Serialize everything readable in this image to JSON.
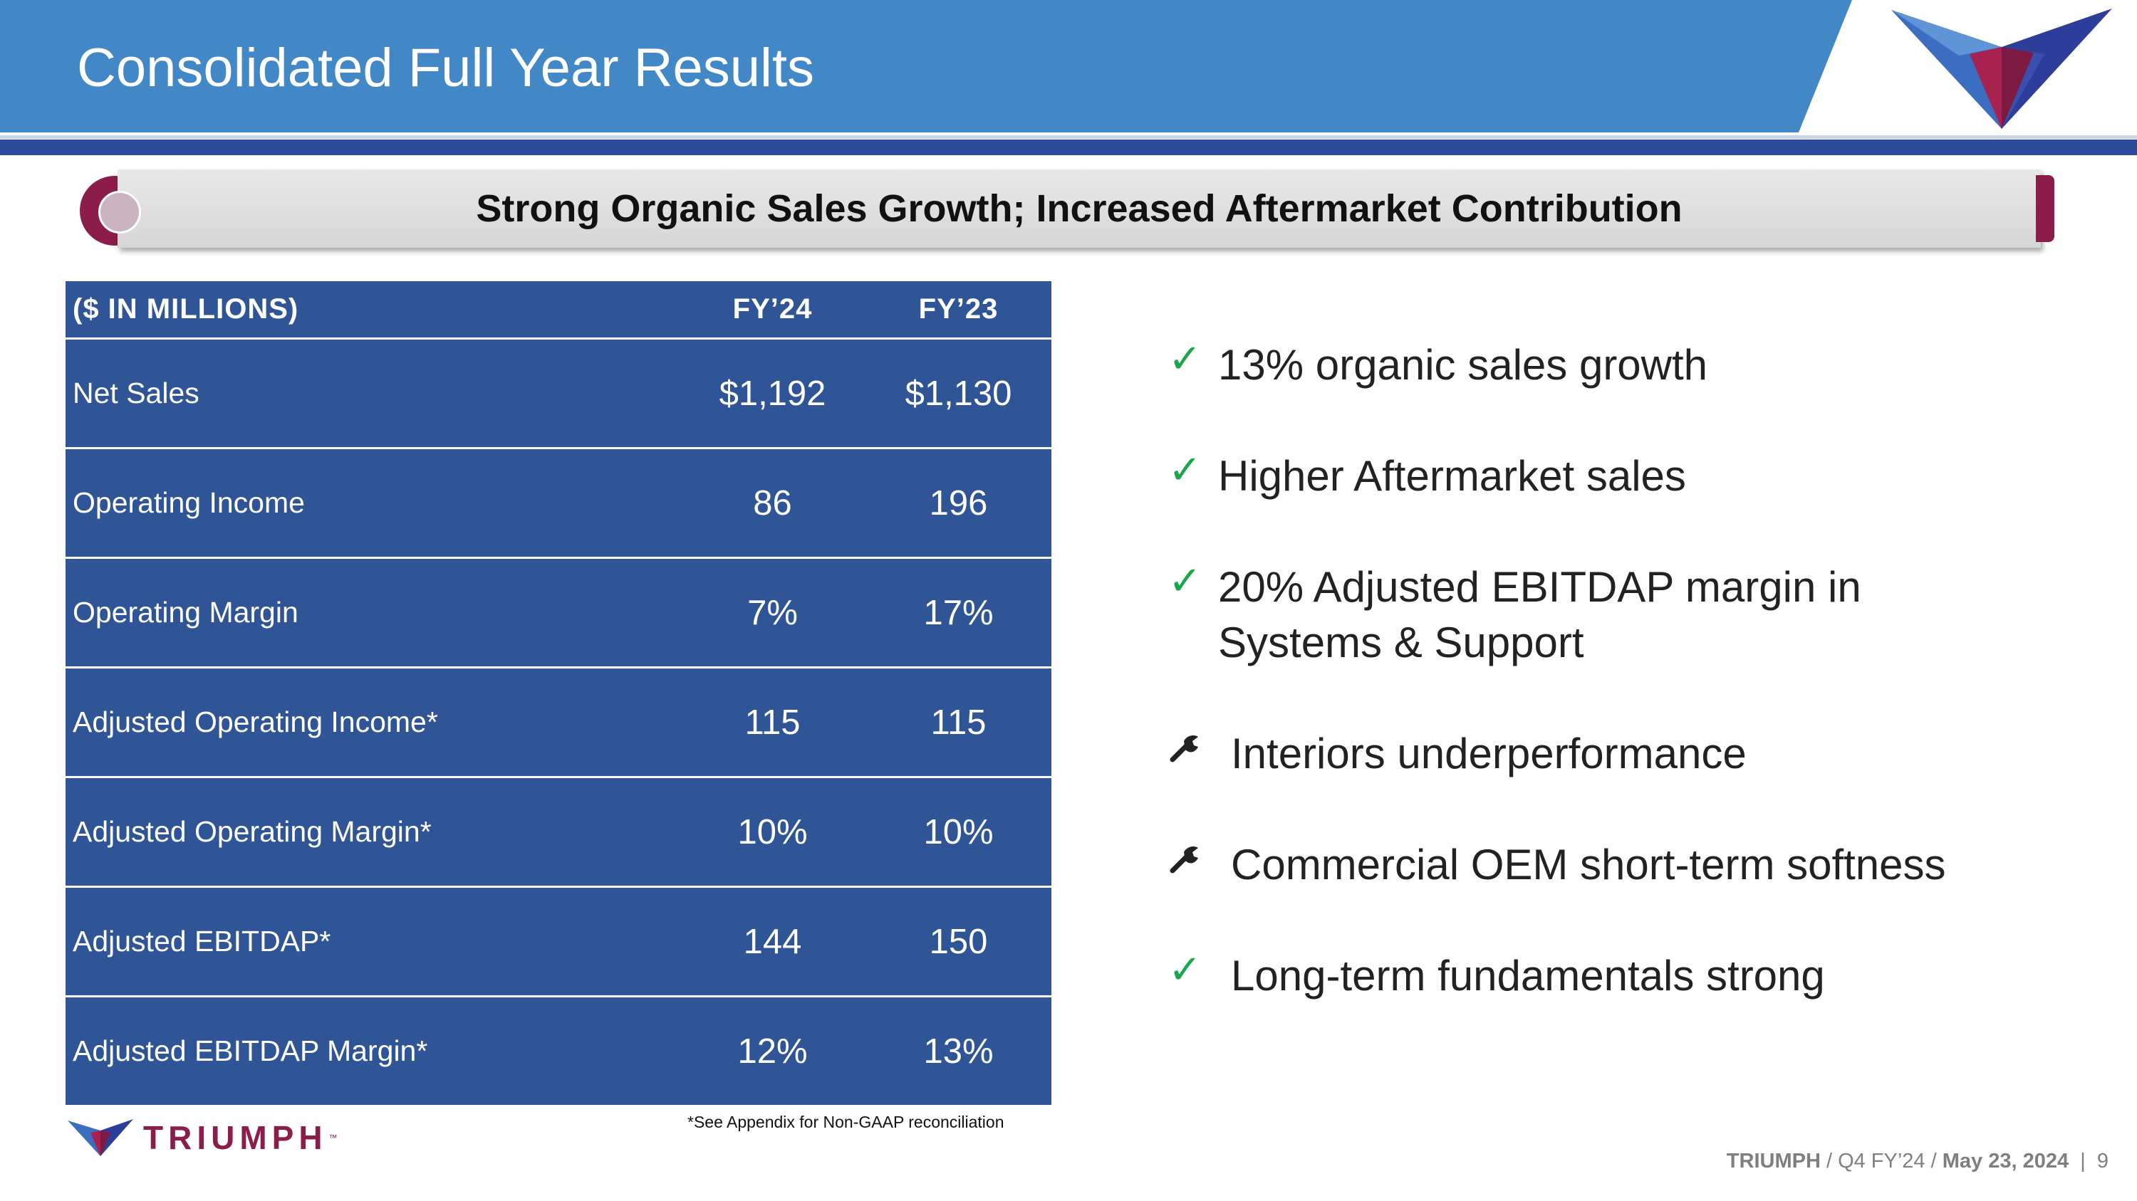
{
  "slide": {
    "title": "Consolidated Full Year Results",
    "banner": "Strong Organic Sales Growth; Increased Aftermarket Contribution"
  },
  "table": {
    "header": {
      "label": "($ IN MILLIONS)",
      "col1": "FY’24",
      "col2": "FY’23"
    },
    "rows": [
      {
        "label": "Net Sales",
        "fy24": "$1,192",
        "fy23": "$1,130"
      },
      {
        "label": "Operating Income",
        "fy24": "86",
        "fy23": "196"
      },
      {
        "label": "Operating Margin",
        "fy24": "7%",
        "fy23": "17%"
      },
      {
        "label": "Adjusted Operating Income*",
        "fy24": "115",
        "fy23": "115"
      },
      {
        "label": "Adjusted Operating Margin*",
        "fy24": "10%",
        "fy23": "10%"
      },
      {
        "label": "Adjusted EBITDAP*",
        "fy24": "144",
        "fy23": "150"
      },
      {
        "label": "Adjusted EBITDAP Margin*",
        "fy24": "12%",
        "fy23": "13%"
      }
    ],
    "footnote": "*See Appendix for Non-GAAP reconciliation"
  },
  "bullets": [
    {
      "icon": "check-icon",
      "text": "13% organic sales growth"
    },
    {
      "icon": "check-icon",
      "text": "Higher Aftermarket sales"
    },
    {
      "icon": "check-icon",
      "text": "20% Adjusted EBITDAP margin in",
      "text2": "Systems & Support"
    },
    {
      "icon": "wrench-icon",
      "text": "Interiors underperformance"
    },
    {
      "icon": "wrench-icon",
      "text": "Commercial OEM short-term softness"
    },
    {
      "icon": "check-icon",
      "text": "Long-term fundamentals strong"
    }
  ],
  "brand": {
    "name": "TRIUMPH",
    "tm": "™"
  },
  "footer": {
    "company": "TRIUMPH",
    "sep1": " / ",
    "period": "Q4 FY’24",
    "sep2": " / ",
    "date": "May 23, 2024",
    "sep3": "  |  ",
    "page": "9"
  },
  "colors": {
    "header_blue": "#4388c6",
    "navy": "#2c4a9a",
    "table_blue": "#2f5597",
    "maroon": "#8c1d4b",
    "check_green": "#1aa64b"
  }
}
